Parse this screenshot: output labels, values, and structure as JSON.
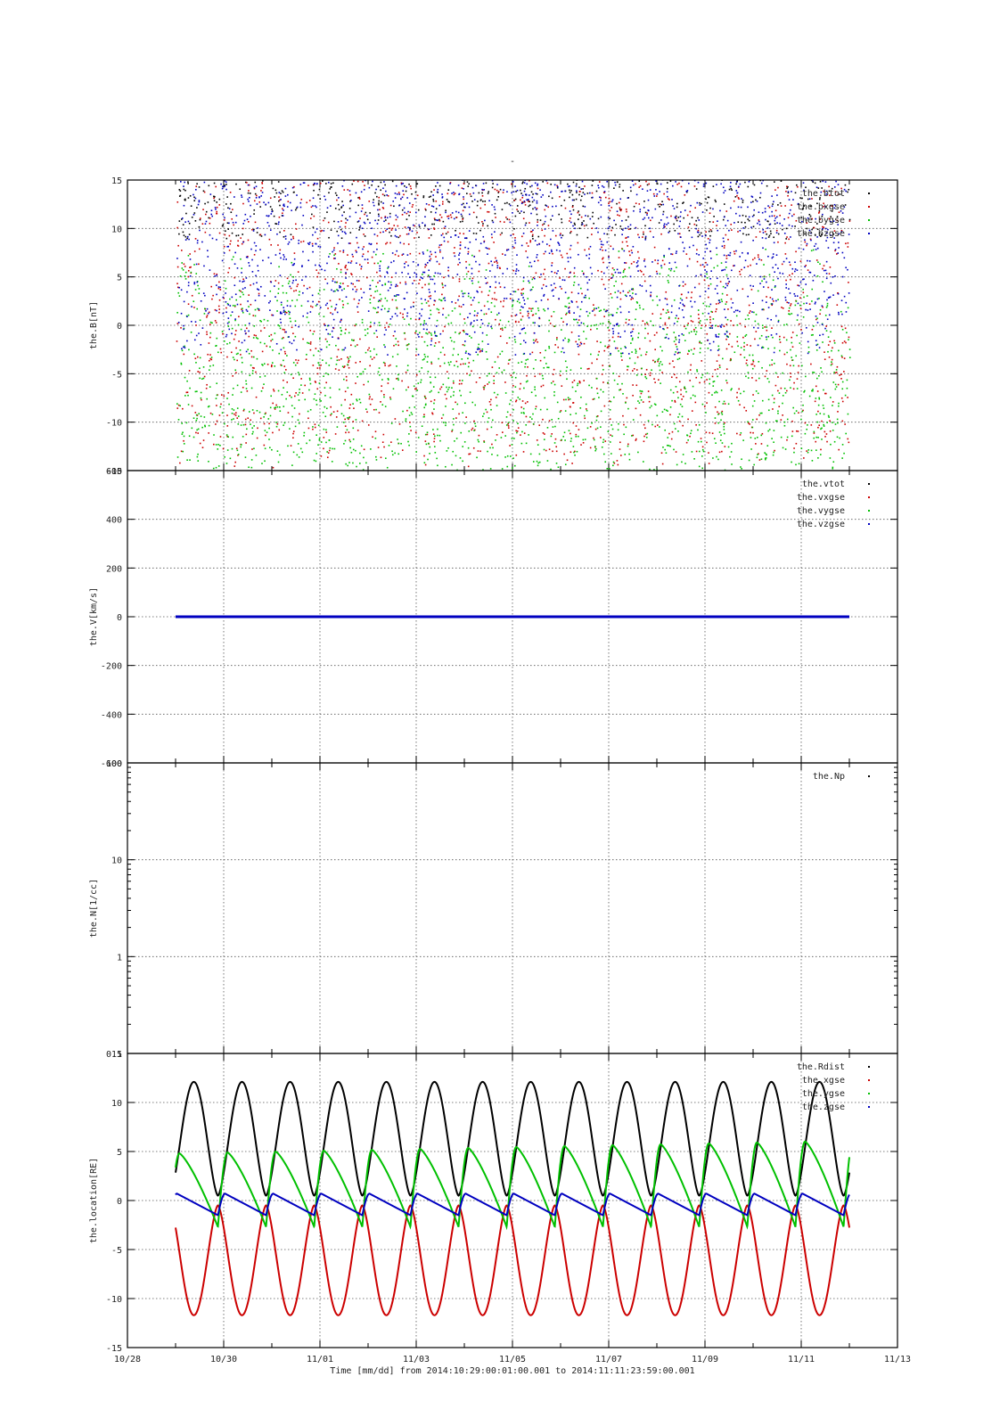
{
  "figure": {
    "title": "-",
    "xlabel": "Time [mm/dd]  from 2014:10:29:00:01:00.001  to  2014:11:11:23:59:00.001",
    "x_ticks": [
      {
        "value": 0,
        "label": "10/28"
      },
      {
        "value": 1,
        "label": ""
      },
      {
        "value": 2,
        "label": "10/30"
      },
      {
        "value": 3,
        "label": ""
      },
      {
        "value": 4,
        "label": "11/01"
      },
      {
        "value": 5,
        "label": ""
      },
      {
        "value": 6,
        "label": "11/03"
      },
      {
        "value": 7,
        "label": ""
      },
      {
        "value": 8,
        "label": "11/05"
      },
      {
        "value": 9,
        "label": ""
      },
      {
        "value": 10,
        "label": "11/07"
      },
      {
        "value": 11,
        "label": ""
      },
      {
        "value": 12,
        "label": "11/09"
      },
      {
        "value": 13,
        "label": ""
      },
      {
        "value": 14,
        "label": "11/11"
      },
      {
        "value": 15,
        "label": ""
      },
      {
        "value": 16,
        "label": "11/13"
      }
    ],
    "x_grid_values": [
      2,
      4,
      6,
      8,
      10,
      12,
      14
    ]
  },
  "chart_data": [
    {
      "type": "scatter",
      "ylabel": "the.B[nT]",
      "xlim": [
        0,
        16
      ],
      "ylim": [
        -15,
        15
      ],
      "y_ticks": [
        -15,
        -10,
        -5,
        0,
        5,
        10,
        15
      ],
      "grid": true,
      "legend_position": "top-right",
      "series": [
        {
          "name": "the.btot",
          "color": "#000000"
        },
        {
          "name": "the.bxgse",
          "color": "#cc0000"
        },
        {
          "name": "the.bygse",
          "color": "#00c000"
        },
        {
          "name": "the.bzgse",
          "color": "#0000c0"
        }
      ],
      "x_range": [
        1,
        15
      ]
    },
    {
      "type": "scatter",
      "ylabel": "the.V[km/s]",
      "xlim": [
        0,
        16
      ],
      "ylim": [
        -600,
        600
      ],
      "y_ticks": [
        -600,
        -400,
        -200,
        0,
        200,
        400,
        600
      ],
      "grid": true,
      "legend_position": "top-right",
      "series": [
        {
          "name": "the.vtot",
          "color": "#000000",
          "values": [
            [
              1,
              0
            ],
            [
              15,
              0
            ]
          ]
        },
        {
          "name": "the.vxgse",
          "color": "#cc0000",
          "values": [
            [
              1,
              0
            ],
            [
              15,
              0
            ]
          ]
        },
        {
          "name": "the.vygse",
          "color": "#00c000",
          "values": [
            [
              1,
              0
            ],
            [
              15,
              0
            ]
          ]
        },
        {
          "name": "the.vzgse",
          "color": "#0000c0",
          "values": [
            [
              1,
              0
            ],
            [
              15,
              0
            ]
          ]
        }
      ]
    },
    {
      "type": "scatter",
      "ylabel": "the.N[1/cc]",
      "xlim": [
        0,
        16
      ],
      "ylim": [
        0.1,
        100
      ],
      "y_scale": "log",
      "y_ticks": [
        {
          "value": 0.1,
          "label": "0.1"
        },
        {
          "value": 1,
          "label": "1"
        },
        {
          "value": 10,
          "label": "10"
        },
        {
          "value": 100,
          "label": "100"
        }
      ],
      "grid": true,
      "legend_position": "top-right",
      "series": [
        {
          "name": "the.Np",
          "color": "#000000",
          "values": []
        }
      ]
    },
    {
      "type": "line",
      "ylabel": "the.location[RE]",
      "xlim": [
        0,
        16
      ],
      "ylim": [
        -15,
        15
      ],
      "y_ticks": [
        -15,
        -10,
        -5,
        0,
        5,
        10,
        15
      ],
      "grid": true,
      "legend_position": "top-right",
      "orbit": {
        "x_start": 1,
        "x_end": 15,
        "period_days": 1.0
      },
      "series": [
        {
          "name": "the.Rdist",
          "color": "#000000",
          "peak": 12.1
        },
        {
          "name": "the.xgse",
          "color": "#cc0000",
          "trough": -11.7
        },
        {
          "name": "the.ygse",
          "color": "#00c000",
          "peak_start": 4.8,
          "peak_end": 6.1,
          "trough": -2.7
        },
        {
          "name": "the.zgse",
          "color": "#0000c0",
          "peak": 0.7,
          "trough": -1.5
        }
      ]
    }
  ]
}
